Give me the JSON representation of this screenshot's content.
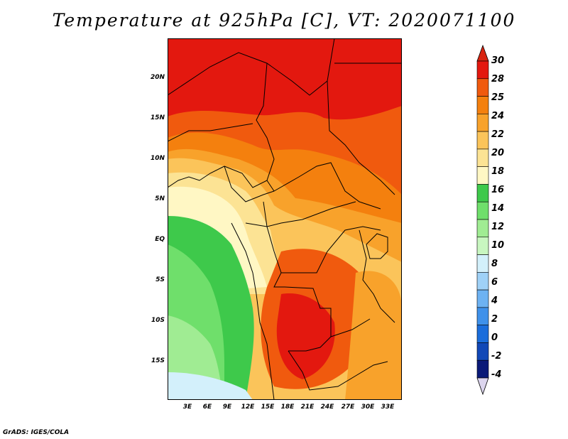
{
  "title": "Temperature at 925hPa [C], VT: 2020071100",
  "credit": "GrADS: IGES/COLA",
  "lat_labels": [
    "20N",
    "15N",
    "10N",
    "5N",
    "EQ",
    "5S",
    "10S",
    "15S"
  ],
  "lon_labels": [
    "3E",
    "6E",
    "9E",
    "12E",
    "15E",
    "18E",
    "21E",
    "24E",
    "27E",
    "30E",
    "33E"
  ],
  "colorbar": {
    "labels": [
      "30",
      "28",
      "25",
      "24",
      "22",
      "20",
      "18",
      "16",
      "14",
      "12",
      "10",
      "8",
      "6",
      "4",
      "2",
      "0",
      "-2",
      "-4"
    ],
    "colors": [
      "#e3180f",
      "#f05a0e",
      "#f4800e",
      "#f8a22b",
      "#fbc45a",
      "#fce394",
      "#fff7c4",
      "#3ec94b",
      "#6fdf6b",
      "#a0ec93",
      "#c8f6c0",
      "#d3f0fb",
      "#9fd1f7",
      "#6db2f2",
      "#3f91ea",
      "#1b6ddb",
      "#1148b7",
      "#0a1a78"
    ],
    "top_color": "#d82410",
    "bottom_color": "#dcd5ee"
  }
}
